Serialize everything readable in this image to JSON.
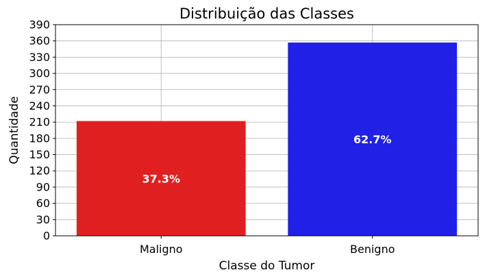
{
  "chart_data": {
    "type": "bar",
    "title": "Distribuição das Classes",
    "xlabel": "Classe do Tumor",
    "ylabel": "Quantidade",
    "categories": [
      "Maligno",
      "Benigno"
    ],
    "values": [
      212,
      357
    ],
    "data_labels": [
      "37.3%",
      "62.7%"
    ],
    "colors": [
      "#e02020",
      "#2020e6"
    ],
    "ylim": [
      0,
      390
    ],
    "yticks": [
      0,
      30,
      60,
      90,
      120,
      150,
      180,
      210,
      240,
      270,
      300,
      330,
      360,
      390
    ],
    "grid": true,
    "legend": "none"
  }
}
